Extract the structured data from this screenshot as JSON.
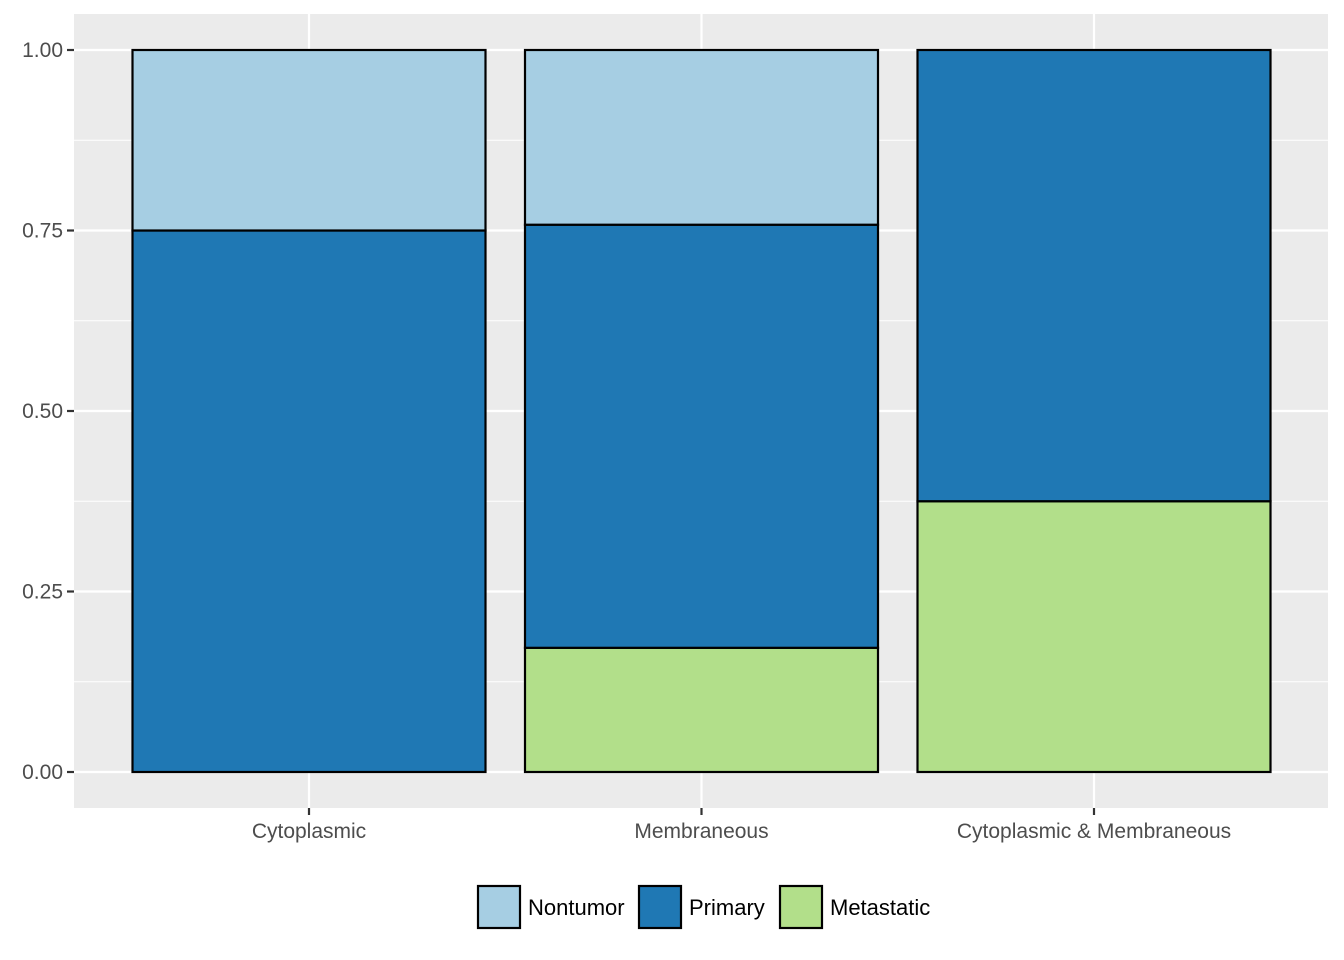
{
  "chart_data": {
    "type": "bar",
    "stacked": true,
    "categories": [
      "Cytoplasmic",
      "Membraneous",
      "Cytoplasmic & Membraneous"
    ],
    "series": [
      {
        "name": "Metastatic",
        "color": "#b2df8a",
        "values": [
          0.0,
          0.172,
          0.375
        ]
      },
      {
        "name": "Primary",
        "color": "#1f78b4",
        "values": [
          0.75,
          0.586,
          0.625
        ]
      },
      {
        "name": "Nontumor",
        "color": "#a6cee3",
        "values": [
          0.25,
          0.242,
          0.0
        ]
      }
    ],
    "legend_order": [
      "Nontumor",
      "Primary",
      "Metastatic"
    ],
    "y_ticks": [
      "0.00",
      "0.25",
      "0.50",
      "0.75",
      "1.00"
    ],
    "ylim": [
      0,
      1
    ],
    "title": "",
    "xlabel": "",
    "ylabel": "",
    "grid": true,
    "legend_position": "bottom",
    "panel_background": "#ebebeb",
    "bar_outline": "#000000"
  }
}
